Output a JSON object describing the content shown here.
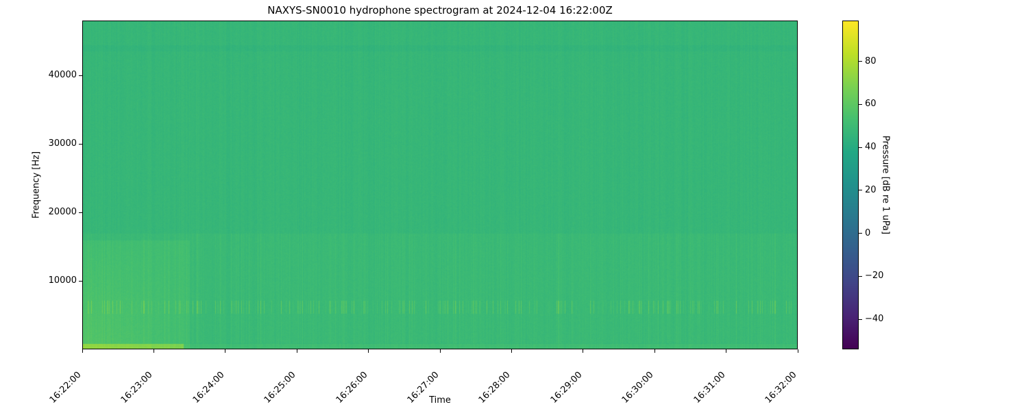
{
  "chart_data": {
    "type": "heatmap",
    "title": "NAXYS-SN0010 hydrophone spectrogram at 2024-12-04 16:22:00Z",
    "xlabel": "Time",
    "ylabel": "Frequency [Hz]",
    "colorbar_label": "Pressure [dB re 1 uPa]",
    "colormap": "viridis",
    "xlim": [
      "16:22:00",
      "16:32:00"
    ],
    "ylim": [
      0,
      48000
    ],
    "clim": [
      -54,
      99
    ],
    "x_ticks": [
      "16:22:00",
      "16:23:00",
      "16:24:00",
      "16:25:00",
      "16:26:00",
      "16:27:00",
      "16:28:00",
      "16:29:00",
      "16:30:00",
      "16:31:00",
      "16:32:00"
    ],
    "y_ticks": [
      10000,
      20000,
      30000,
      40000
    ],
    "colorbar_ticks": [
      -40,
      -20,
      0,
      20,
      40,
      60,
      80
    ],
    "grid": false
  }
}
